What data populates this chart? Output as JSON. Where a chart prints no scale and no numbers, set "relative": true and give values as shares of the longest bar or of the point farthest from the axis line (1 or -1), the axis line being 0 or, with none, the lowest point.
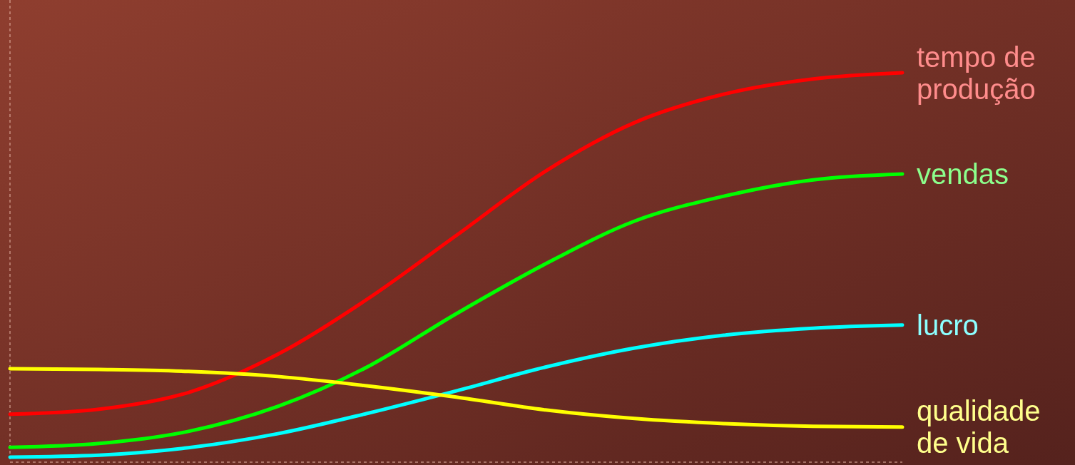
{
  "chart_data": {
    "type": "line",
    "relative": true,
    "categories": [
      null,
      null,
      null,
      null,
      null,
      null,
      null,
      null,
      null,
      null,
      null
    ],
    "series": [
      {
        "name": "tempo de produção",
        "color": "#ff0000",
        "values": [
          0.123,
          0.136,
          0.179,
          0.277,
          0.418,
          0.582,
          0.747,
          0.872,
          0.945,
          0.984,
          1
        ]
      },
      {
        "name": "vendas",
        "color": "#00ff00",
        "values": [
          0.038,
          0.048,
          0.079,
          0.143,
          0.244,
          0.381,
          0.509,
          0.619,
          0.683,
          0.725,
          0.74
        ]
      },
      {
        "name": "lucro",
        "color": "#00ffff",
        "values": [
          0.013,
          0.018,
          0.037,
          0.073,
          0.125,
          0.183,
          0.244,
          0.293,
          0.326,
          0.344,
          0.352
        ]
      },
      {
        "name": "qualidade de vida",
        "color": "#ffff00",
        "values": [
          0.24,
          0.238,
          0.233,
          0.22,
          0.196,
          0.167,
          0.134,
          0.112,
          0.099,
          0.092,
          0.09
        ]
      }
    ]
  }
}
